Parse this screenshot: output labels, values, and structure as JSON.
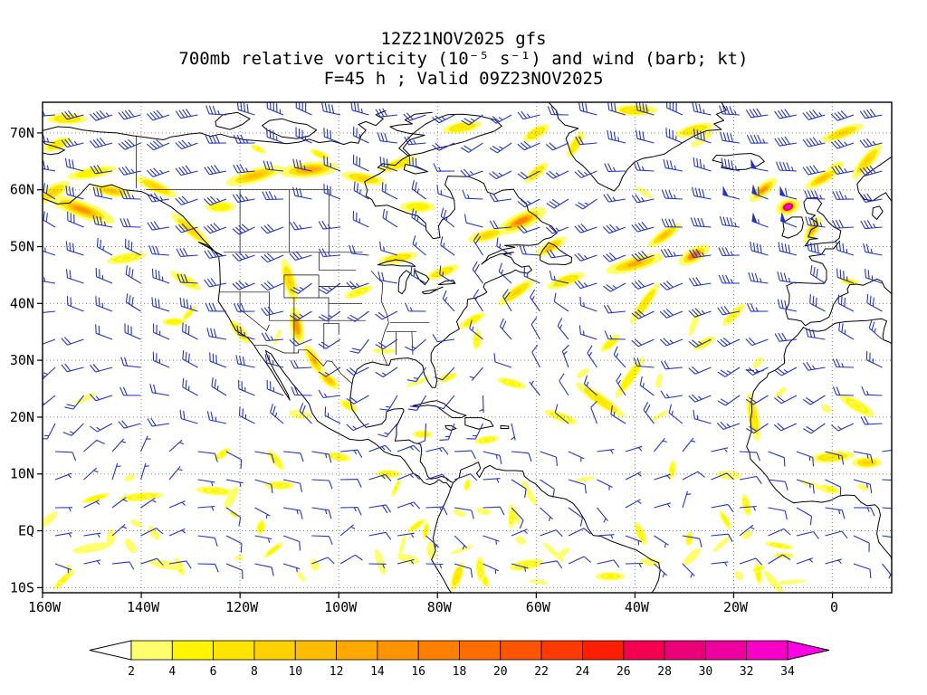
{
  "title": {
    "line1": "12Z21NOV2025 gfs",
    "line2": "700mb relative vorticity (10⁻⁵ s⁻¹) and wind (barb; kt)",
    "line3": "F=45 h ; Valid 09Z23NOV2025"
  },
  "chart_data": {
    "type": "heatmap",
    "title": "700mb relative vorticity (10⁻⁵ s⁻¹) and wind (barb; kt)",
    "model_run": "12Z21NOV2025 gfs",
    "forecast": "F=45 h ; Valid 09Z23NOV2025",
    "projection": "latlon",
    "grid": "dotted",
    "lon_range": [
      -160,
      12
    ],
    "lat_range": [
      -10.9,
      75.4
    ],
    "x_ticks": [
      {
        "label": "160W",
        "lon": -160
      },
      {
        "label": "140W",
        "lon": -140
      },
      {
        "label": "120W",
        "lon": -120
      },
      {
        "label": "100W",
        "lon": -100
      },
      {
        "label": "80W",
        "lon": -80
      },
      {
        "label": "60W",
        "lon": -60
      },
      {
        "label": "40W",
        "lon": -40
      },
      {
        "label": "20W",
        "lon": -20
      },
      {
        "label": "0",
        "lon": 0
      }
    ],
    "y_ticks": [
      {
        "label": "70N",
        "lat": 70
      },
      {
        "label": "60N",
        "lat": 60
      },
      {
        "label": "50N",
        "lat": 50
      },
      {
        "label": "40N",
        "lat": 40
      },
      {
        "label": "30N",
        "lat": 30
      },
      {
        "label": "20N",
        "lat": 20
      },
      {
        "label": "10N",
        "lat": 10
      },
      {
        "label": "EQ",
        "lat": 0
      },
      {
        "label": "10S",
        "lat": -10
      }
    ],
    "wind": {
      "style": "barb",
      "units": "kt",
      "color": "#2233cc"
    },
    "colorbar": {
      "units": "10⁻⁵ s⁻¹",
      "levels": [
        2,
        4,
        6,
        8,
        10,
        12,
        14,
        16,
        18,
        20,
        22,
        24,
        26,
        28,
        30,
        32,
        34
      ],
      "colors": [
        "#ffff6e",
        "#fff500",
        "#ffe400",
        "#ffd000",
        "#ffbc00",
        "#ffa800",
        "#ff9400",
        "#ff8000",
        "#ff6c00",
        "#ff5500",
        "#ff3a00",
        "#ff1e00",
        "#f50050",
        "#eb0078",
        "#ee00a0",
        "#f700c8"
      ],
      "under_color": "#ffffff",
      "over_color": "#ff00e6"
    },
    "vorticity_features_format": "lon, lat, length_deg, width_deg, rotation_deg, value_1e-5_per_s",
    "vorticity_features": [
      [
        -152,
        56.5,
        14,
        3,
        -20,
        14
      ],
      [
        -158,
        59.5,
        8,
        2.5,
        30,
        8
      ],
      [
        -146,
        59.8,
        8,
        2,
        -10,
        10
      ],
      [
        -150,
        63,
        10,
        2,
        10,
        5
      ],
      [
        -137,
        60.5,
        9,
        2,
        -25,
        8
      ],
      [
        -130,
        53,
        10,
        2,
        -40,
        9
      ],
      [
        -124,
        57,
        6,
        2,
        0,
        5
      ],
      [
        -117,
        62.5,
        12,
        2.5,
        15,
        10
      ],
      [
        -106,
        63.5,
        12,
        2.8,
        5,
        13
      ],
      [
        -95,
        62,
        9,
        2,
        -10,
        9
      ],
      [
        -88,
        64.5,
        8,
        2,
        20,
        7
      ],
      [
        -84,
        57,
        7,
        2,
        0,
        5
      ],
      [
        -110,
        44,
        9,
        2.2,
        -75,
        8
      ],
      [
        -108.5,
        36,
        8,
        2.4,
        -80,
        15
      ],
      [
        -105,
        30,
        7,
        2,
        -60,
        12
      ],
      [
        -102,
        26.5,
        5,
        2,
        -40,
        10
      ],
      [
        -98,
        22,
        4,
        1.5,
        -30,
        5
      ],
      [
        -88,
        48,
        8,
        1.8,
        10,
        6
      ],
      [
        -79,
        45.5,
        7,
        1.8,
        20,
        7
      ],
      [
        -63,
        54.5,
        11,
        3,
        25,
        16
      ],
      [
        -70,
        52,
        8,
        2,
        15,
        9
      ],
      [
        -57,
        50,
        7,
        2,
        30,
        10
      ],
      [
        -64,
        42,
        9,
        2,
        35,
        8
      ],
      [
        -54,
        44,
        8,
        2,
        20,
        7
      ],
      [
        -40,
        47,
        12,
        2.5,
        15,
        12
      ],
      [
        -28,
        48.5,
        7,
        2.6,
        30,
        18
      ],
      [
        -34,
        52,
        8,
        2,
        35,
        10
      ],
      [
        -38,
        40,
        10,
        1.8,
        55,
        7
      ],
      [
        -45,
        33,
        5,
        1.6,
        40,
        5
      ],
      [
        -9,
        57,
        5,
        3,
        20,
        33
      ],
      [
        -14,
        60,
        7,
        2.2,
        40,
        14
      ],
      [
        -4,
        53,
        6,
        2,
        60,
        12
      ],
      [
        -2,
        62,
        8,
        2,
        30,
        10
      ],
      [
        7,
        65,
        9,
        2.2,
        50,
        9
      ],
      [
        2,
        70,
        9,
        2,
        20,
        8
      ],
      [
        -28,
        70.5,
        8,
        2,
        15,
        7
      ],
      [
        -40,
        74,
        9,
        2,
        0,
        6
      ],
      [
        -52,
        68,
        6,
        1.8,
        60,
        6
      ],
      [
        -60,
        63,
        6,
        1.8,
        40,
        6
      ],
      [
        -47,
        23,
        12,
        2,
        -35,
        6
      ],
      [
        -41,
        27,
        10,
        1.8,
        55,
        5
      ],
      [
        -55,
        20,
        7,
        1.6,
        -20,
        4
      ],
      [
        -16,
        20,
        10,
        2,
        -80,
        6
      ],
      [
        0,
        13,
        9,
        2,
        5,
        6
      ],
      [
        7,
        12,
        6,
        2,
        0,
        9
      ],
      [
        5,
        22,
        8,
        2,
        -30,
        4
      ],
      [
        -140,
        6,
        9,
        1.5,
        5,
        4
      ],
      [
        -125,
        7,
        8,
        1.5,
        -5,
        4
      ],
      [
        -112,
        8,
        6,
        1.5,
        0,
        4
      ],
      [
        -150,
        -3,
        8,
        1.5,
        10,
        3
      ],
      [
        -135,
        -6,
        7,
        1.5,
        -10,
        3
      ],
      [
        -76,
        -8,
        6,
        1.8,
        70,
        6
      ],
      [
        -62,
        -6,
        7,
        1.8,
        10,
        4
      ],
      [
        -45,
        -8,
        6,
        1.5,
        0,
        4
      ],
      [
        -70,
        16,
        5,
        1.4,
        10,
        4
      ],
      [
        -83,
        17,
        4,
        1.4,
        0,
        4
      ],
      [
        -75,
        71,
        8,
        2,
        10,
        7
      ],
      [
        -60,
        70,
        6,
        2,
        30,
        6
      ],
      [
        -157,
        68,
        6,
        2,
        20,
        6
      ],
      [
        -155,
        72.5,
        8,
        2,
        0,
        7
      ],
      [
        -120,
        35,
        6,
        1.8,
        -50,
        6
      ],
      [
        -131,
        44,
        7,
        1.8,
        -30,
        4
      ],
      [
        -143,
        48,
        8,
        1.8,
        10,
        4
      ],
      [
        -96,
        42,
        6,
        1.6,
        20,
        4
      ],
      [
        -73,
        37,
        6,
        1.6,
        30,
        5
      ],
      [
        -20,
        38,
        6,
        1.6,
        45,
        4
      ],
      [
        -26,
        33,
        5,
        1.5,
        30,
        4
      ],
      [
        -65,
        26,
        6,
        1.5,
        -15,
        4
      ],
      [
        -90,
        10,
        5,
        1.5,
        0,
        4
      ],
      [
        -100,
        13,
        5,
        1.5,
        -10,
        4
      ],
      [
        -78,
        27,
        4,
        1.4,
        20,
        4
      ]
    ]
  },
  "colors": {
    "coastline": "#000000",
    "gridline": "#888888",
    "wind_barb": "#2233cc",
    "background": "#ffffff"
  }
}
